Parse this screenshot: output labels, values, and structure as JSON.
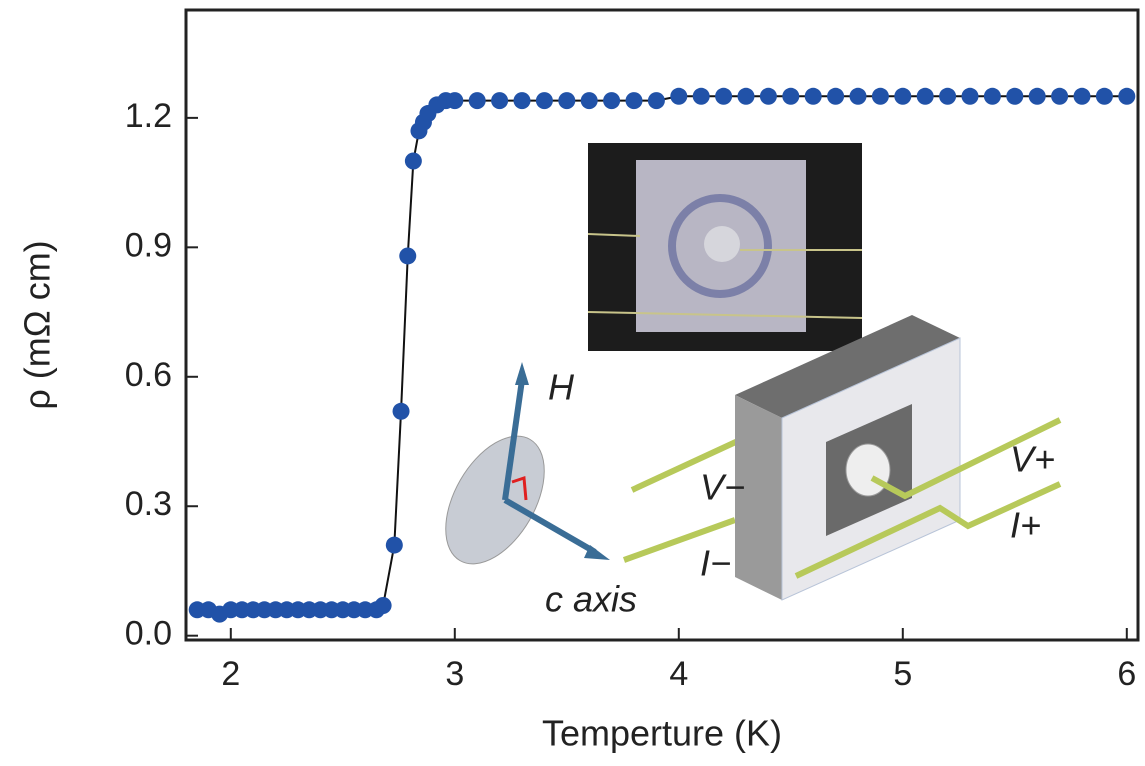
{
  "chart_data": {
    "type": "line",
    "x_label": "Temperture (K)",
    "y_label": "ρ (mΩ cm)",
    "x": [
      1.85,
      1.9,
      1.95,
      2.0,
      2.05,
      2.1,
      2.15,
      2.2,
      2.25,
      2.3,
      2.35,
      2.4,
      2.45,
      2.5,
      2.55,
      2.6,
      2.65,
      2.68,
      2.73,
      2.76,
      2.79,
      2.815,
      2.84,
      2.86,
      2.88,
      2.92,
      2.96,
      3.0,
      3.1,
      3.2,
      3.3,
      3.4,
      3.5,
      3.6,
      3.7,
      3.8,
      3.9,
      4.0,
      4.1,
      4.2,
      4.3,
      4.4,
      4.5,
      4.6,
      4.7,
      4.8,
      4.9,
      5.0,
      5.1,
      5.2,
      5.3,
      5.4,
      5.5,
      5.6,
      5.7,
      5.8,
      5.9,
      6.0
    ],
    "values": [
      0.06,
      0.06,
      0.05,
      0.06,
      0.06,
      0.06,
      0.06,
      0.06,
      0.06,
      0.06,
      0.06,
      0.06,
      0.06,
      0.06,
      0.06,
      0.06,
      0.06,
      0.07,
      0.21,
      0.52,
      0.88,
      1.1,
      1.17,
      1.19,
      1.21,
      1.23,
      1.24,
      1.24,
      1.24,
      1.24,
      1.24,
      1.24,
      1.24,
      1.24,
      1.24,
      1.24,
      1.24,
      1.25,
      1.25,
      1.25,
      1.25,
      1.25,
      1.25,
      1.25,
      1.25,
      1.25,
      1.25,
      1.25,
      1.25,
      1.25,
      1.25,
      1.25,
      1.25,
      1.25,
      1.25,
      1.25,
      1.25,
      1.25
    ],
    "color": "#2152a8",
    "line_color": "#111111",
    "xlim": [
      1.8,
      6.05
    ],
    "xticks": [
      2,
      3,
      4,
      5,
      6
    ],
    "ylim": [
      -0.01,
      1.45
    ],
    "yticks": [
      {
        "value": 0,
        "label": "0.0"
      },
      0.3,
      0.6,
      0.9,
      1.2
    ],
    "annotations": [
      "H",
      "c axis",
      "V−",
      "I−",
      "V+",
      "I+"
    ]
  }
}
